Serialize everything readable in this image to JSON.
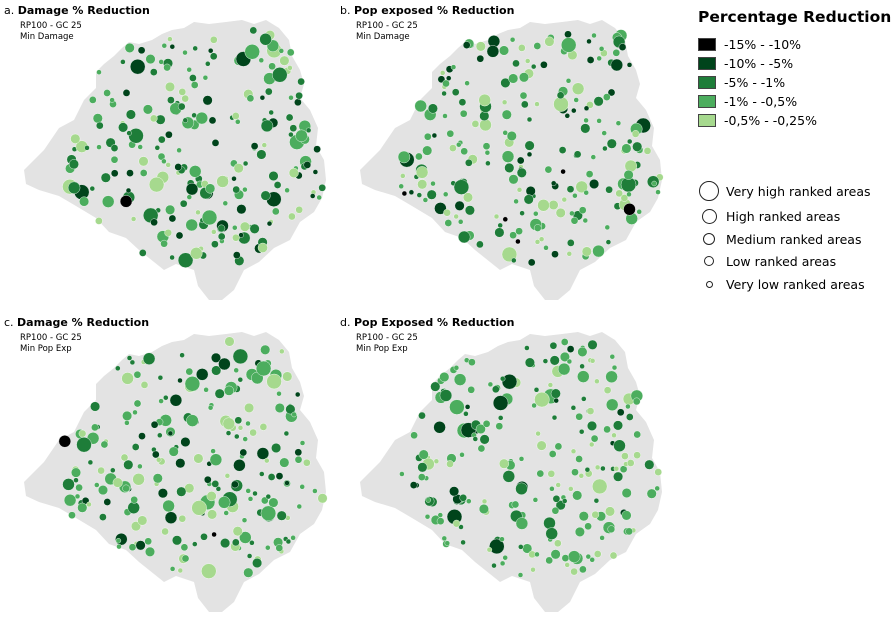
{
  "panels": [
    {
      "letter": "a.",
      "title": "Damage % Reduction",
      "subtitle_1": "RP100 - GC 25",
      "subtitle_2": "Min Damage",
      "seed": 11,
      "bias": 0.55
    },
    {
      "letter": "b.",
      "title": "Pop exposed % Reduction",
      "subtitle_1": "RP100 - GC 25",
      "subtitle_2": "Min Damage",
      "seed": 23,
      "bias": 0.35
    },
    {
      "letter": "c.",
      "title": "Damage % Reduction",
      "subtitle_1": "RP100 - GC 25",
      "subtitle_2": "Min Pop Exp",
      "seed": 37,
      "bias": 0.45
    },
    {
      "letter": "d.",
      "title": "Pop Exposed % Reduction",
      "subtitle_1": "RP100 - GC 25",
      "subtitle_2": "Min Pop Exp",
      "seed": 53,
      "bias": 0.2
    }
  ],
  "legend": {
    "title": "Percentage Reduction",
    "classes": [
      {
        "label": "-15% - -10%",
        "color": "#000000"
      },
      {
        "label": "-10% - -5%",
        "color": "#00441b"
      },
      {
        "label": "-5% - -1%",
        "color": "#1e7d39"
      },
      {
        "label": "-1% - -0,5%",
        "color": "#4cad5e"
      },
      {
        "label": "-0,5% - -0,25%",
        "color": "#a6d98e"
      }
    ],
    "ranks": [
      {
        "label": "Very high ranked areas",
        "level": 5
      },
      {
        "label": "High ranked areas",
        "level": 4
      },
      {
        "label": "Medium ranked areas",
        "level": 3
      },
      {
        "label": "Low ranked areas",
        "level": 2
      },
      {
        "label": "Very low ranked areas",
        "level": 1
      }
    ]
  },
  "colors": {
    "base_map": "#e3e3e3",
    "symbol_outline": "#ffffff"
  }
}
